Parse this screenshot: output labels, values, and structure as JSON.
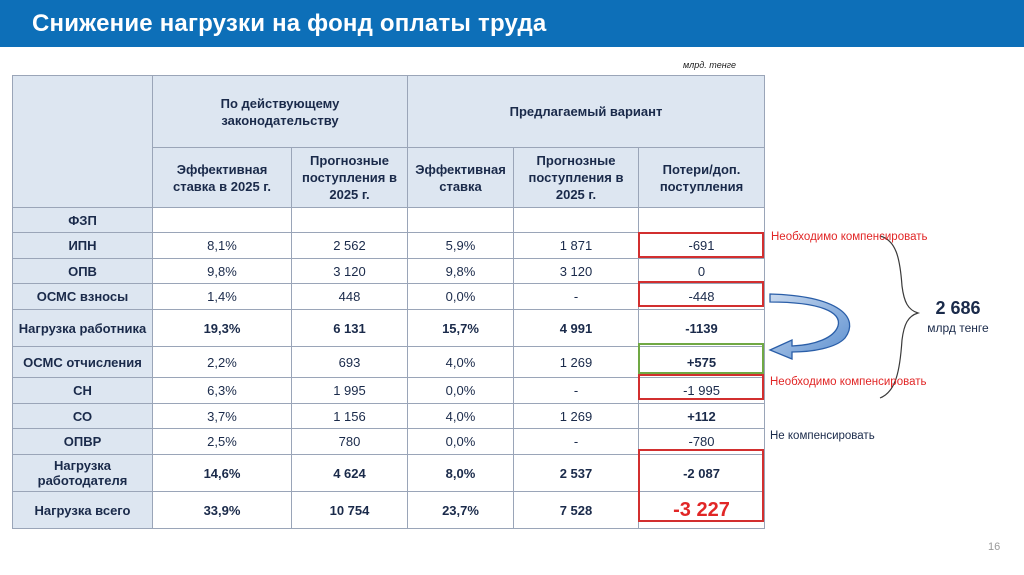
{
  "slide": {
    "title": "Снижение нагрузки на фонд оплаты труда",
    "unit_note": "млрд. тенге",
    "page_number": "16"
  },
  "table": {
    "group_headers": {
      "current": "По действующему законодательству",
      "proposed": "Предлагаемый вариант"
    },
    "sub_headers": {
      "eff_rate_2025": "Эффективная ставка в 2025 г.",
      "forecast_2025": "Прогнозные поступления в 2025 г.",
      "eff_rate": "Эффективная ставка",
      "forecast_2025_proposed": "Прогнозные поступления в 2025 г.",
      "losses": "Потери/доп. поступления"
    },
    "rows": [
      {
        "name": "ФЗП",
        "cells": [
          "",
          "",
          "",
          "",
          ""
        ]
      },
      {
        "name": "ИПН",
        "cells": [
          "8,1%",
          "2 562",
          "5,9%",
          "1 871",
          "-691"
        ]
      },
      {
        "name": "ОПВ",
        "cells": [
          "9,8%",
          "3 120",
          "9,8%",
          "3 120",
          "0"
        ]
      },
      {
        "name": "ОСМС взносы",
        "cells": [
          "1,4%",
          "448",
          "0,0%",
          "-",
          "-448"
        ]
      },
      {
        "name": "Нагрузка работника",
        "cells": [
          "19,3%",
          "6 131",
          "15,7%",
          "4 991",
          "-1139"
        ]
      },
      {
        "name": "ОСМС отчисления",
        "cells": [
          "2,2%",
          "693",
          "4,0%",
          "1 269",
          "+575"
        ]
      },
      {
        "name": "СН",
        "cells": [
          "6,3%",
          "1 995",
          "0,0%",
          "-",
          "-1 995"
        ]
      },
      {
        "name": "СО",
        "cells": [
          "3,7%",
          "1 156",
          "4,0%",
          "1 269",
          "+112"
        ]
      },
      {
        "name": "ОПВР",
        "cells": [
          "2,5%",
          "780",
          "0,0%",
          "-",
          "-780"
        ]
      },
      {
        "name": "Нагрузка работодателя",
        "cells": [
          "14,6%",
          "4 624",
          "8,0%",
          "2 537",
          "-2 087"
        ]
      },
      {
        "name": "Нагрузка всего",
        "cells": [
          "33,9%",
          "10 754",
          "23,7%",
          "7 528",
          "-3 227"
        ]
      }
    ]
  },
  "annotations": {
    "compensate_1": "Необходимо компенсировать",
    "compensate_2": "Необходимо компенсировать",
    "no_compensate": "Не компенсировать",
    "total_value": "2 686",
    "total_unit": "млрд тенге"
  },
  "colors": {
    "title_bar": "#0d6fb8",
    "header_fill": "#dde6f1",
    "loss_highlight": "#d22f2f",
    "gain_highlight": "#70a844",
    "note_red": "#e12626"
  }
}
